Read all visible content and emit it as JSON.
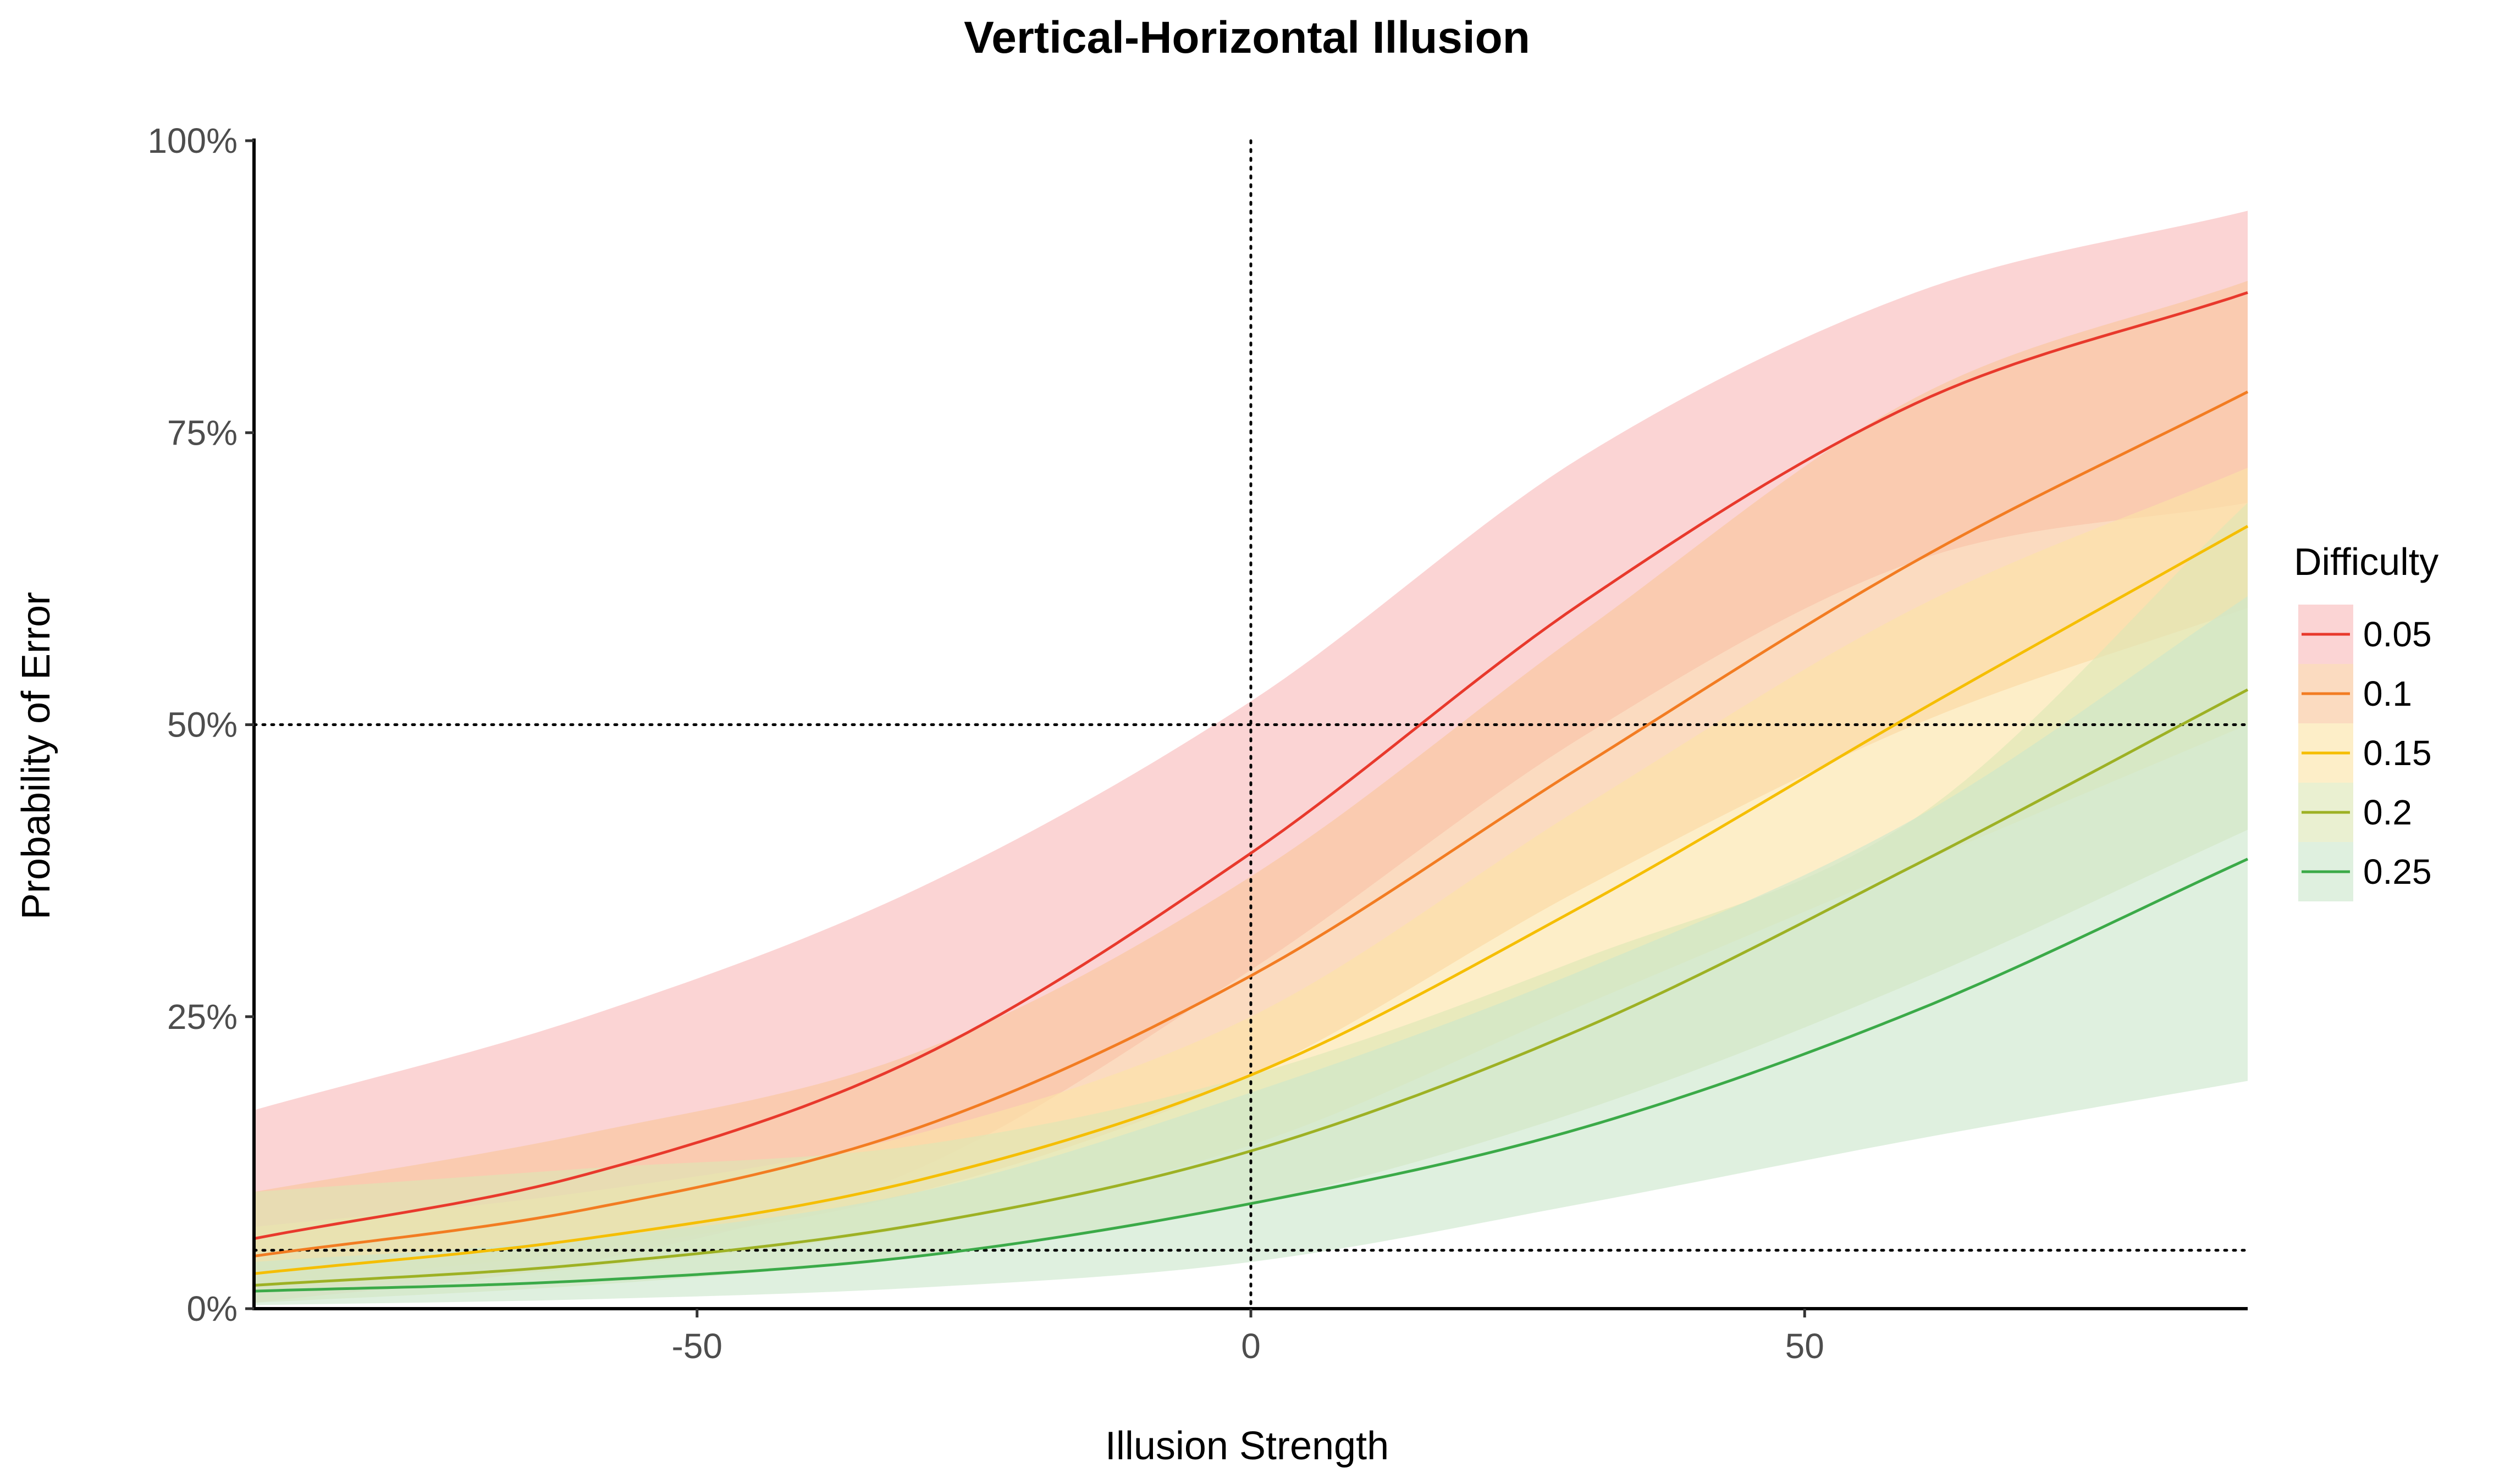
{
  "chart_data": {
    "type": "line",
    "title": "Vertical-Horizontal Illusion",
    "xlabel": "Illusion Strength",
    "ylabel": "Probability of Error",
    "xlim": [
      -90,
      90
    ],
    "ylim": [
      0,
      1
    ],
    "x_ticks": [
      -50,
      0,
      50
    ],
    "x_tick_labels": [
      "-50",
      "0",
      "50"
    ],
    "y_ticks": [
      0,
      0.25,
      0.5,
      0.75,
      1
    ],
    "y_tick_labels": [
      "0%",
      "25%",
      "50%",
      "75%",
      "100%"
    ],
    "grid": false,
    "reference_lines": {
      "vertical_x": 0,
      "horizontal_y": [
        0.05,
        0.5
      ],
      "style": "dotted"
    },
    "legend": {
      "title": "Difficulty",
      "position": "right"
    },
    "x": [
      -90,
      -60,
      -30,
      0,
      30,
      60,
      90
    ],
    "series": [
      {
        "name": "0.05",
        "color": "#E8392C",
        "fill": "#F8B9B9",
        "values": [
          0.06,
          0.115,
          0.215,
          0.39,
          0.605,
          0.775,
          0.87
        ],
        "lower": [
          0.005,
          0.04,
          0.12,
          0.29,
          0.49,
          0.64,
          0.69
        ],
        "upper": [
          0.17,
          0.25,
          0.36,
          0.52,
          0.73,
          0.87,
          0.94
        ]
      },
      {
        "name": "0.1",
        "color": "#F27C22",
        "fill": "#F9C59A",
        "values": [
          0.045,
          0.085,
          0.155,
          0.285,
          0.465,
          0.64,
          0.785
        ],
        "lower": [
          0.02,
          0.05,
          0.1,
          0.2,
          0.36,
          0.5,
          0.6
        ],
        "upper": [
          0.1,
          0.15,
          0.22,
          0.37,
          0.58,
          0.78,
          0.88
        ]
      },
      {
        "name": "0.15",
        "color": "#F5BE00",
        "fill": "#FCE3A6",
        "values": [
          0.03,
          0.06,
          0.11,
          0.2,
          0.345,
          0.51,
          0.67
        ],
        "lower": [
          0.015,
          0.035,
          0.07,
          0.14,
          0.26,
          0.38,
          0.5
        ],
        "upper": [
          0.07,
          0.1,
          0.15,
          0.25,
          0.43,
          0.6,
          0.72
        ]
      },
      {
        "name": "0.2",
        "color": "#9DB124",
        "fill": "#DDE6B5",
        "values": [
          0.02,
          0.038,
          0.072,
          0.135,
          0.24,
          0.38,
          0.53
        ],
        "lower": [
          0.005,
          0.02,
          0.045,
          0.09,
          0.17,
          0.28,
          0.41
        ],
        "upper": [
          0.1,
          0.12,
          0.14,
          0.2,
          0.3,
          0.42,
          0.69
        ]
      },
      {
        "name": "0.25",
        "color": "#3BAA48",
        "fill": "#CBE6CC",
        "values": [
          0.015,
          0.024,
          0.045,
          0.09,
          0.155,
          0.255,
          0.385
        ],
        "lower": [
          0.003,
          0.008,
          0.018,
          0.04,
          0.09,
          0.145,
          0.195
        ],
        "upper": [
          0.04,
          0.06,
          0.1,
          0.185,
          0.29,
          0.42,
          0.61
        ]
      }
    ]
  }
}
